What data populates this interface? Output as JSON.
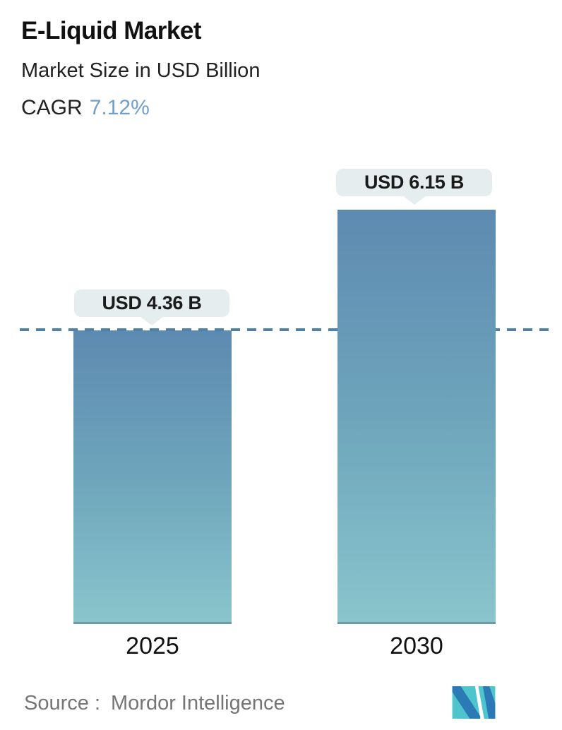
{
  "header": {
    "title": "E-Liquid Market",
    "subtitle": "Market Size in USD Billion",
    "cagr_label": "CAGR",
    "cagr_value": "7.12%"
  },
  "chart_data": {
    "type": "bar",
    "title": "E-Liquid Market",
    "subtitle": "Market Size in USD Billion",
    "cagr": "7.12%",
    "categories": [
      "2025",
      "2030"
    ],
    "values": [
      4.36,
      6.15
    ],
    "value_labels": [
      "USD 4.36 B",
      "USD 6.15 B"
    ],
    "unit": "USD Billion",
    "ylim": [
      0,
      6.8
    ],
    "grid": false,
    "legend": "none",
    "reference_line": {
      "style": "dashed",
      "at_value": 4.36,
      "note": "horizontal dashed line marking the 2025 market size level"
    },
    "bar_style": "vertical gradient, steel blue top to light teal bottom"
  },
  "footer": {
    "source_label": "Source :",
    "source_value": "Mordor Intelligence",
    "logo_name": "mordor-intelligence-logo"
  },
  "colors": {
    "accent-cagr": "#6f9fca",
    "bar-top": "#5d8ab1",
    "bar-mid": "#6fa6bc",
    "bar-bottom": "#8ac5cc",
    "dash": "#4d80aa",
    "tooltip-bg": "#e6edef",
    "text-dark": "#1b1b1b",
    "text-gray": "#757575",
    "logo-teal": "#4ec5cc",
    "logo-blue": "#2b7ab6"
  },
  "layout_scale": {
    "pixels_per_billion": 95.5
  }
}
